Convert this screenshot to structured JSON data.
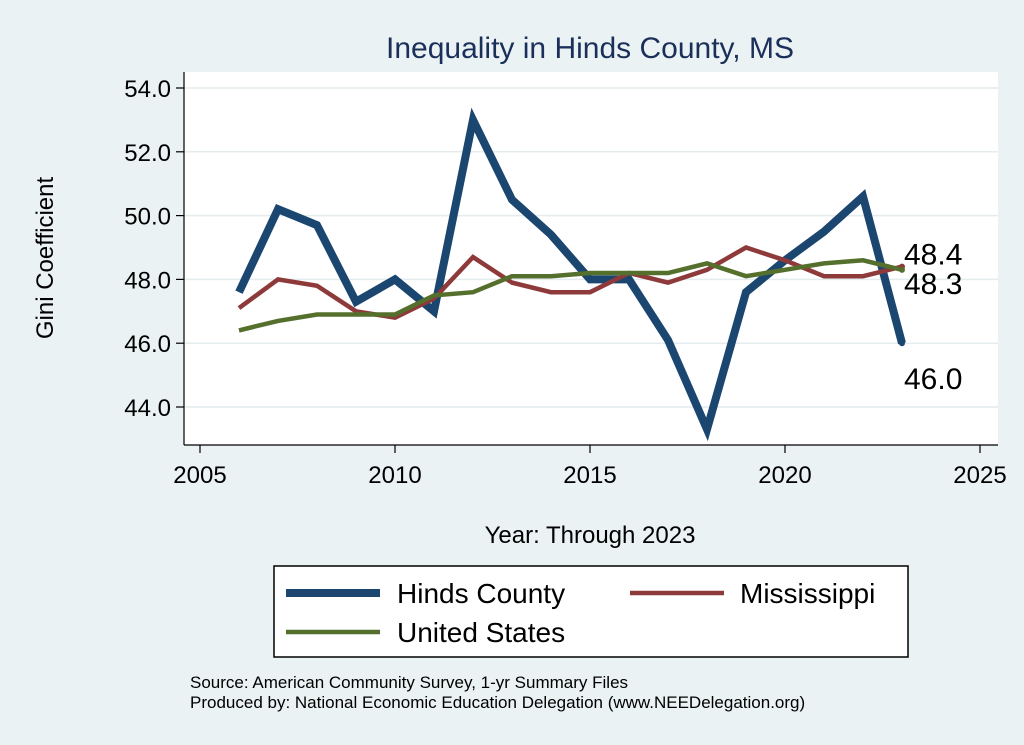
{
  "chart_data": {
    "type": "line",
    "title": "Inequality in Hinds County, MS",
    "xlabel": "Year: Through 2023",
    "ylabel": "Gini Coefficient",
    "xlim": [
      2005,
      2025
    ],
    "ylim": [
      43,
      54.5
    ],
    "x_ticks": [
      "2005",
      "2010",
      "2015",
      "2020",
      "2025"
    ],
    "y_ticks": [
      "44.0",
      "46.0",
      "48.0",
      "50.0",
      "52.0",
      "54.0"
    ],
    "x_tick_values": [
      2005,
      2010,
      2015,
      2020,
      2025
    ],
    "y_tick_values": [
      44,
      46,
      48,
      50,
      52,
      54
    ],
    "grid": true,
    "x": [
      2006,
      2007,
      2008,
      2009,
      2010,
      2011,
      2012,
      2013,
      2014,
      2015,
      2016,
      2017,
      2018,
      2019,
      2020,
      2021,
      2022,
      2023
    ],
    "series": [
      {
        "name": "Hinds County",
        "color": "#1b4670",
        "values": [
          47.6,
          50.2,
          49.7,
          47.3,
          48.0,
          47.0,
          53.0,
          50.5,
          49.4,
          48.0,
          48.0,
          46.1,
          43.3,
          47.6,
          48.6,
          49.5,
          50.6,
          46.0
        ],
        "end_label": "46.0"
      },
      {
        "name": "Mississippi",
        "color": "#8e3a3a",
        "values": [
          47.1,
          48.0,
          47.8,
          47.0,
          46.8,
          47.4,
          48.7,
          47.9,
          47.6,
          47.6,
          48.2,
          47.9,
          48.3,
          49.0,
          48.6,
          48.1,
          48.1,
          48.4
        ],
        "end_label": "48.4"
      },
      {
        "name": "United States",
        "color": "#55702d",
        "values": [
          46.4,
          46.7,
          46.9,
          46.9,
          46.9,
          47.5,
          47.6,
          48.1,
          48.1,
          48.2,
          48.2,
          48.2,
          48.5,
          48.1,
          48.3,
          48.5,
          48.6,
          48.3
        ],
        "end_label": "48.3"
      }
    ],
    "legend": [
      "Hinds County",
      "Mississippi",
      "United States"
    ],
    "legend_position": "bottom"
  },
  "notes": {
    "source": "Source: American Community Survey, 1-yr Summary Files",
    "produced": "Produced by: National Economic Education Delegation (www.NEEDelegation.org)"
  }
}
